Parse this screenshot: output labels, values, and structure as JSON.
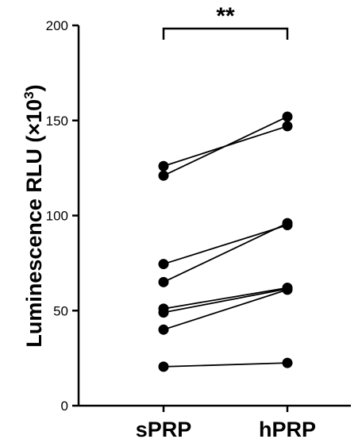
{
  "chart_data": {
    "type": "scatter",
    "subtype": "paired-before-after",
    "categories": [
      "sPRP",
      "hPRP"
    ],
    "ylabel": "Luminescence RLU (×10³)",
    "ylabel_main": "Luminescence RLU (×10",
    "ylabel_sup": "3",
    "ylabel_end": ")",
    "ylim": [
      0,
      200
    ],
    "yticks": [
      0,
      50,
      100,
      150,
      200
    ],
    "pairs": [
      {
        "sPRP": 126,
        "hPRP": 147
      },
      {
        "sPRP": 121,
        "hPRP": 152
      },
      {
        "sPRP": 74.5,
        "hPRP": 95
      },
      {
        "sPRP": 65,
        "hPRP": 96
      },
      {
        "sPRP": 51,
        "hPRP": 62
      },
      {
        "sPRP": 49,
        "hPRP": 61.5
      },
      {
        "sPRP": 40,
        "hPRP": 61
      },
      {
        "sPRP": 20.5,
        "hPRP": 22.5
      }
    ],
    "significance": {
      "between": [
        "sPRP",
        "hPRP"
      ],
      "label": "**"
    },
    "grid": false,
    "legend": "none"
  }
}
